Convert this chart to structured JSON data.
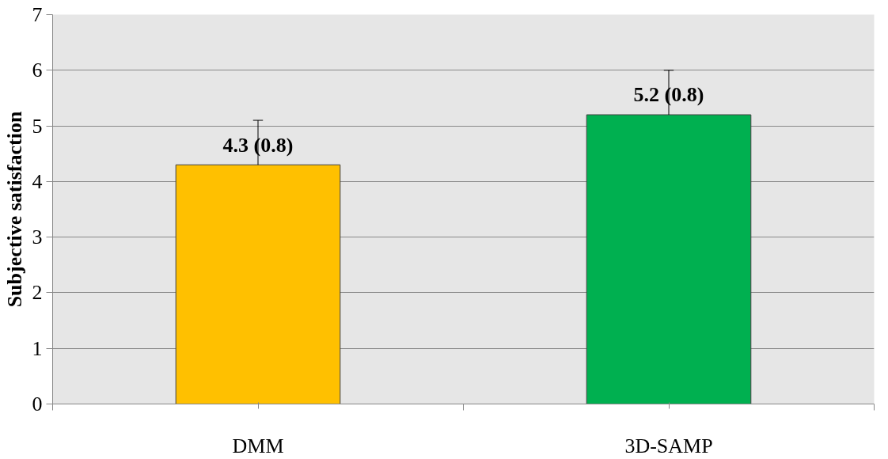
{
  "chart_data": {
    "type": "bar",
    "ylabel": "Subjective satisfaction",
    "categories": [
      "DMM",
      "3D-SAMP"
    ],
    "values": [
      4.3,
      5.2
    ],
    "colors": [
      "#ffc000",
      "#00b050"
    ],
    "errors": [
      [
        4.3,
        5.1
      ],
      [
        5.2,
        6.0
      ]
    ],
    "value_labels": [
      "4.3 (0.8)",
      "5.2 (0.8)"
    ],
    "ylim": [
      0,
      7
    ],
    "yticks": [
      0,
      1,
      2,
      3,
      4,
      5,
      6,
      7
    ],
    "grid": "y"
  }
}
